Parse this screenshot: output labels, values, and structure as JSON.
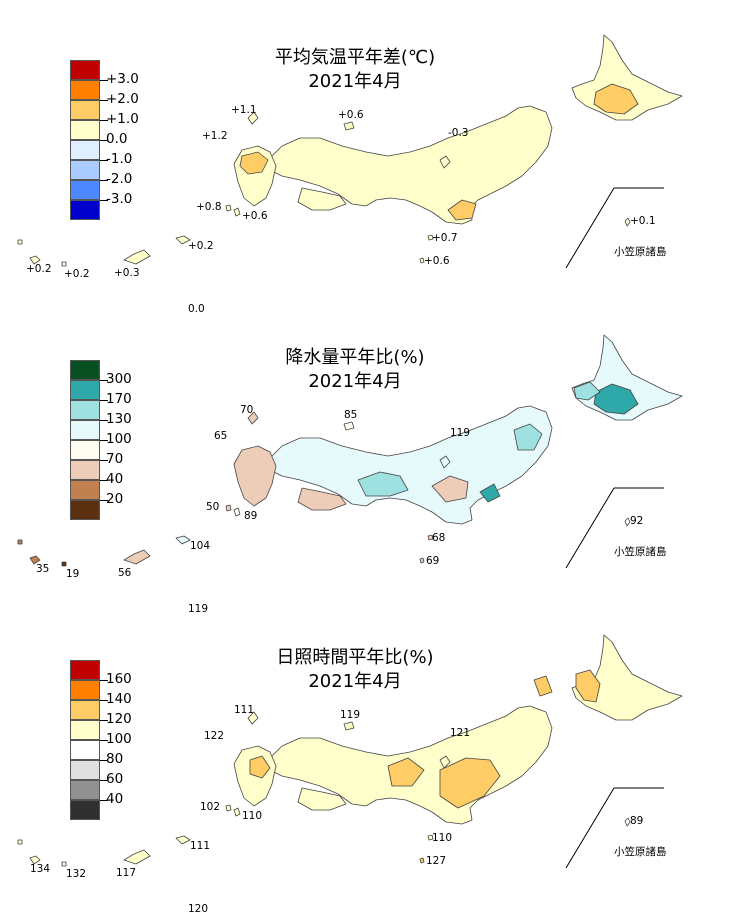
{
  "colors": {
    "temp": [
      "#c00000",
      "#ff8000",
      "#ffcc66",
      "#ffffcc",
      "#dfefff",
      "#aaccff",
      "#4d88ff",
      "#0000cc"
    ],
    "precip": [
      "#0a4f22",
      "#2ea8a8",
      "#9fe0e0",
      "#e6f9fb",
      "#fffdf2",
      "#eecdb8",
      "#c08050",
      "#5a3010"
    ],
    "sun": [
      "#c00000",
      "#ff8000",
      "#ffcc66",
      "#ffffcc",
      "#ffffff",
      "#e0e0e0",
      "#909090",
      "#303030"
    ]
  },
  "panels": [
    {
      "id": "temperature",
      "title": "平均気温平年差(℃)",
      "subtitle": "2021年4月",
      "legend_ticks": [
        "+3.0",
        "+2.0",
        "+1.0",
        "0.0",
        "-1.0",
        "-2.0",
        "-3.0"
      ],
      "labels": {
        "tsushima": "+1.1",
        "iki": "+1.2",
        "oki": "+0.6",
        "sado": "-0.3",
        "koshiki": "+0.8",
        "tanegashima": "+0.6",
        "hachijojima": "+0.7",
        "miyakejima": "+0.6",
        "chichijima": "+0.1",
        "amami": "+0.2",
        "ishigaki": "+0.2",
        "miyako": "+0.2",
        "okinawa": "+0.3",
        "daito": "0.0"
      },
      "ogasawara": "小笠原諸島"
    },
    {
      "id": "precipitation",
      "title": "降水量平年比(%)",
      "subtitle": "2021年4月",
      "legend_ticks": [
        "300",
        "170",
        "130",
        "100",
        "70",
        "40",
        "20"
      ],
      "labels": {
        "tsushima": "70",
        "iki": "65",
        "oki": "85",
        "sado": "119",
        "koshiki": "50",
        "tanegashima": "89",
        "hachijojima": "68",
        "miyakejima": "69",
        "chichijima": "92",
        "amami": "104",
        "ishigaki": "35",
        "miyako": "19",
        "okinawa": "56",
        "daito": "119"
      },
      "ogasawara": "小笠原諸島"
    },
    {
      "id": "sunshine",
      "title": "日照時間平年比(%)",
      "subtitle": "2021年4月",
      "legend_ticks": [
        "160",
        "140",
        "120",
        "100",
        "80",
        "60",
        "40"
      ],
      "labels": {
        "tsushima": "111",
        "iki": "122",
        "oki": "119",
        "sado": "121",
        "koshiki": "102",
        "tanegashima": "110",
        "hachijojima": "110",
        "miyakejima": "127",
        "chichijima": "89",
        "amami": "111",
        "ishigaki": "134",
        "miyako": "132",
        "okinawa": "117",
        "daito": "120"
      },
      "ogasawara": "小笠原諸島"
    }
  ]
}
